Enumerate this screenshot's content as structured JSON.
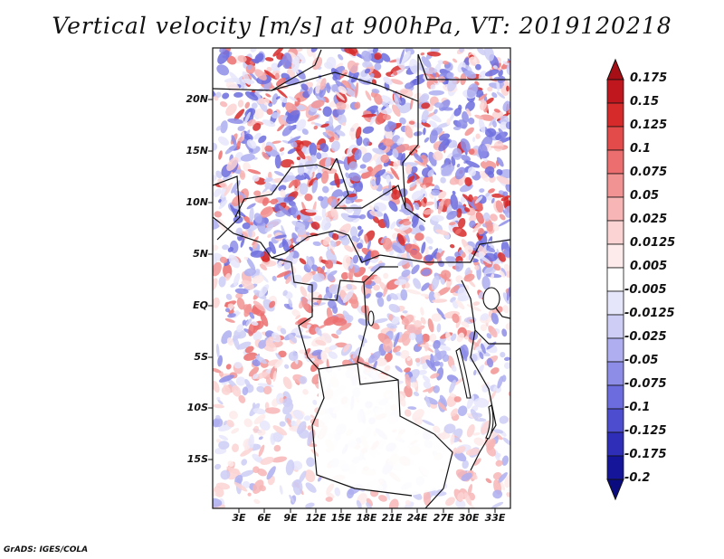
{
  "title": "Vertical velocity [m/s] at 900hPa, VT: 2019120218",
  "credit": "GrADS: IGES/COLA",
  "map": {
    "lat_labels": [
      "20N",
      "15N",
      "10N",
      "5N",
      "EQ",
      "5S",
      "10S",
      "15S"
    ],
    "lon_labels": [
      "3E",
      "6E",
      "9E",
      "12E",
      "15E",
      "18E",
      "21E",
      "24E",
      "27E",
      "30E",
      "33E"
    ]
  },
  "colorbar": {
    "levels": [
      "0.175",
      "0.15",
      "0.125",
      "0.1",
      "0.075",
      "0.05",
      "0.025",
      "0.0125",
      "0.005",
      "-0.005",
      "-0.0125",
      "-0.025",
      "-0.05",
      "-0.075",
      "-0.1",
      "-0.125",
      "-0.175",
      "-0.2"
    ],
    "colors": [
      "#a50f15",
      "#c0171f",
      "#d62a2a",
      "#e34a4a",
      "#ec6e6e",
      "#f29393",
      "#f7b5b5",
      "#fbd3d3",
      "#fdeaea",
      "#ffffff",
      "#e6e6fb",
      "#cdcdf6",
      "#aeaef0",
      "#8d8de8",
      "#6c6cde",
      "#4d4dcf",
      "#2e2eb8",
      "#15159a",
      "#0b0b80"
    ]
  }
}
